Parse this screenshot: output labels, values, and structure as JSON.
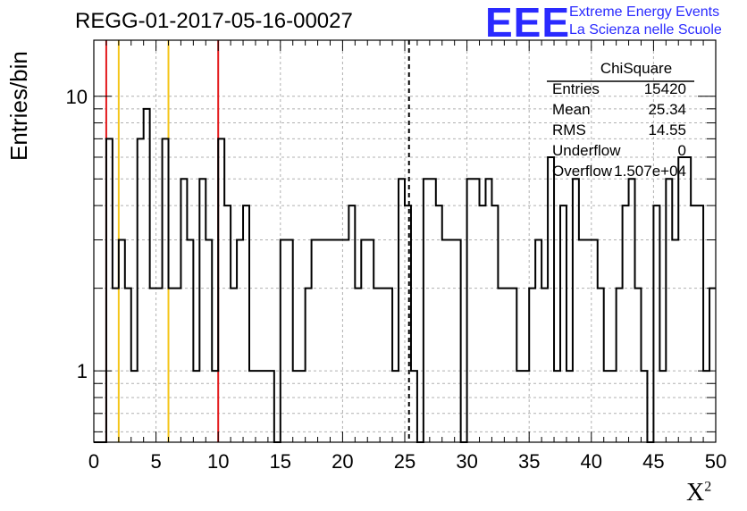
{
  "header": {
    "title": "REGG-01-2017-05-16-00027",
    "logo_mark": "EEE",
    "logo_line1": "Extreme Energy Events",
    "logo_line2": "La Scienza nelle Scuole"
  },
  "axes": {
    "ylabel": "Entries/bin",
    "xlabel": "X",
    "xlabel_sup": "2"
  },
  "stats": {
    "title": "ChiSquare",
    "rows": [
      {
        "key": "Entries",
        "value": "15420"
      },
      {
        "key": "Mean",
        "value": "25.34"
      },
      {
        "key": "RMS",
        "value": "14.55"
      },
      {
        "key": "Underflow",
        "value": "0"
      },
      {
        "key": "Overflow",
        "value": "1.507e+04"
      }
    ]
  },
  "chart_data": {
    "type": "histogram",
    "title": "REGG-01-2017-05-16-00027",
    "xlabel": "X²",
    "ylabel": "Entries/bin",
    "xlim": [
      0,
      50
    ],
    "ylim": [
      0.55,
      16
    ],
    "yscale": "log",
    "grid": true,
    "bin_width": 0.5,
    "x_ticks": [
      0,
      5,
      10,
      15,
      20,
      25,
      30,
      35,
      40,
      45,
      50
    ],
    "y_ticks": [
      1,
      10
    ],
    "counts": [
      0,
      0,
      7,
      2,
      3,
      2,
      1,
      7,
      9,
      2,
      2,
      7,
      2,
      2,
      5,
      3,
      1,
      5,
      3,
      1,
      7,
      4,
      2,
      3,
      4,
      1,
      1,
      1,
      1,
      0,
      3,
      3,
      1,
      1,
      2,
      3,
      3,
      3,
      3,
      3,
      3,
      4,
      2,
      3,
      3,
      2,
      2,
      2,
      1,
      5,
      4,
      1,
      0,
      5,
      5,
      4,
      3,
      3,
      3,
      0,
      5,
      5,
      4,
      5,
      4,
      2,
      2,
      2,
      1,
      1,
      2,
      3,
      2,
      6,
      1,
      4,
      1,
      5,
      3,
      3,
      3,
      2,
      1,
      1,
      2,
      4,
      5,
      2,
      1,
      0,
      4,
      1,
      5,
      3,
      6,
      6,
      4,
      4,
      1,
      2
    ],
    "vertical_lines": [
      {
        "x": 1,
        "color": "#e31a1c",
        "style": "solid"
      },
      {
        "x": 2,
        "color": "#f5c518",
        "style": "solid"
      },
      {
        "x": 6,
        "color": "#f5c518",
        "style": "solid"
      },
      {
        "x": 10,
        "color": "#e31a1c",
        "style": "solid"
      },
      {
        "x": 25.34,
        "color": "#000000",
        "style": "dashed"
      }
    ]
  }
}
